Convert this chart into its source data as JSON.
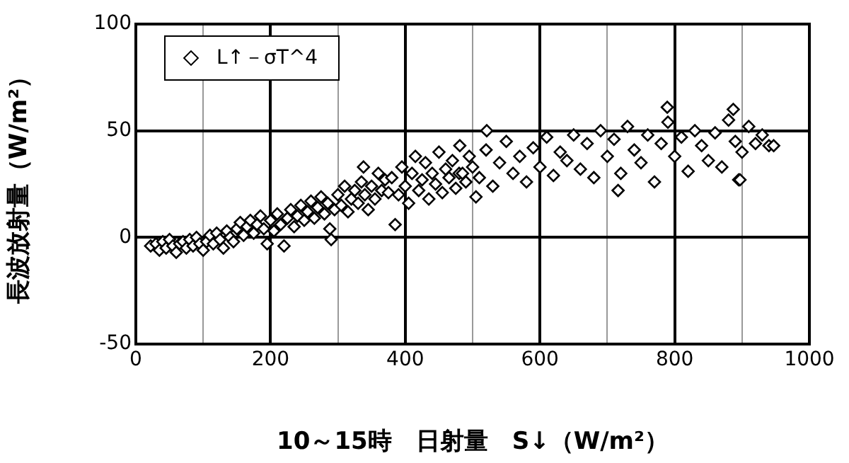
{
  "chart_data": {
    "type": "scatter",
    "xlabel": "10～15時　日射量　S↓（W/m²）",
    "ylabel": "長波放射量（W/m²）",
    "xlim": [
      0,
      1000
    ],
    "xticks": [
      0,
      {
        "value": 100,
        "label": null
      },
      200,
      {
        "value": 300,
        "label": null
      },
      400,
      {
        "value": 500,
        "label": null
      },
      600,
      {
        "value": 700,
        "label": null
      },
      800,
      {
        "value": 900,
        "label": null
      },
      1000
    ],
    "ylim": [
      -50,
      100
    ],
    "yticks": [
      -50,
      0,
      50,
      100
    ],
    "grid": true,
    "legend": "top left",
    "marker": "diamond",
    "series": [
      {
        "name": "L↑－σT^4",
        "color": "#000000",
        "x": [
          22,
          30,
          35,
          40,
          45,
          50,
          55,
          60,
          65,
          70,
          75,
          80,
          85,
          90,
          95,
          100,
          105,
          110,
          115,
          120,
          125,
          130,
          135,
          140,
          145,
          150,
          155,
          160,
          165,
          170,
          175,
          180,
          185,
          190,
          195,
          200,
          205,
          210,
          215,
          220,
          225,
          230,
          235,
          240,
          245,
          250,
          255,
          260,
          265,
          270,
          275,
          280,
          285,
          288,
          290,
          295,
          300,
          305,
          310,
          315,
          320,
          325,
          330,
          335,
          338,
          340,
          345,
          350,
          355,
          360,
          365,
          370,
          375,
          380,
          385,
          390,
          395,
          400,
          405,
          410,
          415,
          420,
          425,
          430,
          435,
          440,
          445,
          450,
          455,
          460,
          465,
          470,
          475,
          480,
          481,
          485,
          490,
          495,
          500,
          505,
          510,
          520,
          521,
          530,
          540,
          550,
          560,
          570,
          580,
          590,
          600,
          610,
          620,
          630,
          640,
          650,
          660,
          670,
          680,
          690,
          700,
          710,
          716,
          720,
          730,
          740,
          750,
          760,
          770,
          780,
          789,
          790,
          800,
          810,
          820,
          830,
          840,
          850,
          860,
          870,
          880,
          887,
          890,
          895,
          897,
          900,
          910,
          920,
          930,
          940,
          947
        ],
        "values": [
          -4,
          -3,
          -6,
          -2,
          -5,
          -1,
          -4,
          -7,
          -3,
          -2,
          -5,
          -1,
          -4,
          0,
          -3,
          -6,
          -2,
          1,
          -3,
          2,
          -1,
          -5,
          3,
          0,
          -2,
          4,
          7,
          1,
          5,
          8,
          2,
          6,
          10,
          4,
          -3,
          8,
          3,
          11,
          6,
          -4,
          9,
          13,
          5,
          10,
          15,
          8,
          12,
          17,
          9,
          14,
          19,
          11,
          16,
          4,
          -1,
          13,
          20,
          15,
          24,
          12,
          18,
          22,
          16,
          26,
          33,
          20,
          13,
          24,
          18,
          30,
          22,
          27,
          21,
          28,
          6,
          20,
          33,
          24,
          16,
          30,
          38,
          22,
          27,
          35,
          18,
          30,
          25,
          40,
          21,
          32,
          28,
          36,
          23,
          30,
          43,
          30,
          26,
          38,
          33,
          19,
          28,
          41,
          50,
          24,
          35,
          45,
          30,
          38,
          26,
          42,
          33,
          47,
          29,
          40,
          36,
          48,
          32,
          44,
          28,
          50,
          38,
          46,
          22,
          30,
          52,
          41,
          35,
          48,
          26,
          44,
          61,
          54,
          38,
          47,
          31,
          50,
          43,
          36,
          49,
          33,
          55,
          60,
          45,
          27,
          27,
          40,
          52,
          44,
          48,
          43,
          43
        ]
      }
    ]
  }
}
